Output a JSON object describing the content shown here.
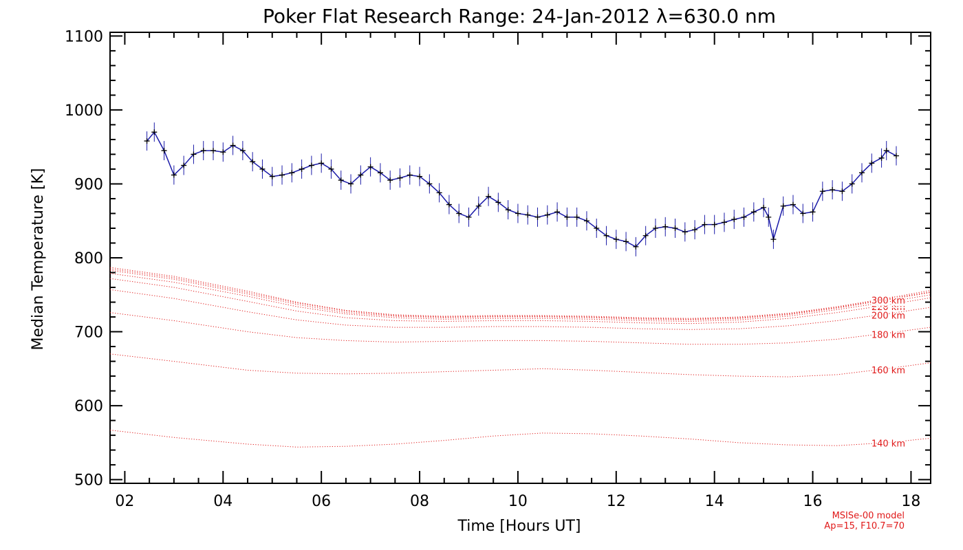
{
  "chart_data": {
    "type": "line",
    "title": "Poker Flat Research Range: 24-Jan-2012 λ=630.0 nm",
    "xlabel": "Time [Hours UT]",
    "ylabel": "Median Temperature [K]",
    "xlim": [
      1.7,
      18.4
    ],
    "ylim": [
      495,
      1105
    ],
    "x_ticks": [
      2,
      4,
      6,
      8,
      10,
      12,
      14,
      16,
      18
    ],
    "x_tick_labels": [
      "02",
      "04",
      "06",
      "08",
      "10",
      "12",
      "14",
      "16",
      "18"
    ],
    "y_ticks": [
      500,
      600,
      700,
      800,
      900,
      1000,
      1100
    ],
    "y_tick_labels": [
      "500",
      "600",
      "700",
      "800",
      "900",
      "1000",
      "1100"
    ],
    "grid": false,
    "colors": {
      "measured": "#1a1aa8",
      "markers": "#000000",
      "model": "#e01818"
    },
    "measured": {
      "x": [
        2.45,
        2.6,
        2.8,
        3.0,
        3.2,
        3.4,
        3.6,
        3.8,
        4.0,
        4.2,
        4.4,
        4.6,
        4.8,
        5.0,
        5.2,
        5.4,
        5.6,
        5.8,
        6.0,
        6.2,
        6.4,
        6.6,
        6.8,
        7.0,
        7.2,
        7.4,
        7.6,
        7.8,
        8.0,
        8.2,
        8.4,
        8.6,
        8.8,
        9.0,
        9.2,
        9.4,
        9.6,
        9.8,
        10.0,
        10.2,
        10.4,
        10.6,
        10.8,
        11.0,
        11.2,
        11.4,
        11.6,
        11.8,
        12.0,
        12.2,
        12.4,
        12.6,
        12.8,
        13.0,
        13.2,
        13.4,
        13.6,
        13.8,
        14.0,
        14.2,
        14.4,
        14.6,
        14.8,
        15.0,
        15.1,
        15.2,
        15.4,
        15.6,
        15.8,
        16.0,
        16.2,
        16.4,
        16.6,
        16.8,
        17.0,
        17.2,
        17.4,
        17.5,
        17.7
      ],
      "y": [
        958,
        970,
        945,
        912,
        925,
        940,
        945,
        945,
        943,
        952,
        945,
        930,
        920,
        910,
        912,
        915,
        920,
        925,
        928,
        920,
        905,
        900,
        912,
        923,
        915,
        905,
        908,
        912,
        910,
        900,
        888,
        872,
        860,
        855,
        870,
        883,
        875,
        865,
        860,
        858,
        855,
        858,
        862,
        855,
        855,
        850,
        840,
        830,
        825,
        822,
        815,
        830,
        840,
        842,
        840,
        835,
        838,
        845,
        845,
        848,
        852,
        855,
        862,
        868,
        855,
        825,
        870,
        872,
        860,
        862,
        890,
        892,
        890,
        900,
        915,
        928,
        935,
        945,
        938
      ]
    },
    "series": [
      {
        "name": "140 km",
        "x": [
          1.7,
          3.0,
          4.5,
          5.5,
          6.5,
          7.5,
          8.5,
          9.5,
          10.5,
          11.5,
          12.5,
          13.5,
          14.5,
          15.5,
          16.5,
          17.5,
          18.4
        ],
        "values": [
          567,
          557,
          548,
          544,
          545,
          548,
          553,
          559,
          563,
          562,
          559,
          555,
          550,
          547,
          546,
          550,
          556
        ]
      },
      {
        "name": "160 km",
        "x": [
          1.7,
          3.0,
          4.5,
          5.5,
          6.5,
          7.5,
          8.5,
          9.5,
          10.5,
          11.5,
          12.5,
          13.5,
          14.5,
          15.5,
          16.5,
          17.5,
          18.4
        ],
        "values": [
          670,
          660,
          648,
          644,
          643,
          644,
          646,
          648,
          650,
          648,
          645,
          642,
          640,
          639,
          642,
          650,
          658
        ]
      },
      {
        "name": "180 km",
        "x": [
          1.7,
          3.0,
          4.5,
          5.5,
          6.5,
          7.5,
          8.5,
          9.5,
          10.5,
          11.5,
          12.5,
          13.5,
          14.5,
          15.5,
          16.5,
          17.5,
          18.4
        ],
        "values": [
          726,
          715,
          700,
          692,
          688,
          686,
          687,
          688,
          688,
          687,
          685,
          683,
          683,
          685,
          690,
          698,
          706
        ]
      },
      {
        "name": "200 km",
        "x": [
          1.7,
          3.0,
          4.5,
          5.5,
          6.5,
          7.5,
          8.5,
          9.5,
          10.5,
          11.5,
          12.5,
          13.5,
          14.5,
          15.5,
          16.5,
          17.5,
          18.4
        ],
        "values": [
          757,
          745,
          727,
          716,
          709,
          706,
          706,
          707,
          707,
          706,
          704,
          703,
          704,
          708,
          715,
          724,
          733
        ]
      },
      {
        "name": "220 km",
        "x": [
          1.7,
          3.0,
          4.5,
          5.5,
          6.5,
          7.5,
          8.5,
          9.5,
          10.5,
          11.5,
          12.5,
          13.5,
          14.5,
          15.5,
          16.5,
          17.5,
          18.4
        ],
        "values": [
          772,
          760,
          741,
          728,
          719,
          715,
          714,
          715,
          715,
          714,
          712,
          711,
          713,
          718,
          726,
          736,
          746
        ]
      },
      {
        "name": "240 km",
        "x": [
          1.7,
          3.0,
          4.5,
          5.5,
          6.5,
          7.5,
          8.5,
          9.5,
          10.5,
          11.5,
          12.5,
          13.5,
          14.5,
          15.5,
          16.5,
          17.5,
          18.4
        ],
        "values": [
          779,
          767,
          748,
          734,
          724,
          719,
          717,
          718,
          718,
          717,
          715,
          714,
          716,
          721,
          730,
          740,
          750
        ]
      },
      {
        "name": "260 km",
        "x": [
          1.7,
          3.0,
          4.5,
          5.5,
          6.5,
          7.5,
          8.5,
          9.5,
          10.5,
          11.5,
          12.5,
          13.5,
          14.5,
          15.5,
          16.5,
          17.5,
          18.4
        ],
        "values": [
          783,
          771,
          751,
          737,
          726,
          721,
          719,
          720,
          720,
          719,
          717,
          716,
          718,
          723,
          732,
          743,
          753
        ]
      },
      {
        "name": "280 km",
        "x": [
          1.7,
          3.0,
          4.5,
          5.5,
          6.5,
          7.5,
          8.5,
          9.5,
          10.5,
          11.5,
          12.5,
          13.5,
          14.5,
          15.5,
          16.5,
          17.5,
          18.4
        ],
        "values": [
          785,
          773,
          753,
          739,
          728,
          722,
          720,
          721,
          721,
          720,
          718,
          717,
          719,
          724,
          733,
          744,
          754
        ]
      },
      {
        "name": "300 km",
        "x": [
          1.7,
          3.0,
          4.5,
          5.5,
          6.5,
          7.5,
          8.5,
          9.5,
          10.5,
          11.5,
          12.5,
          13.5,
          14.5,
          15.5,
          16.5,
          17.5,
          18.4
        ],
        "values": [
          787,
          775,
          755,
          740,
          729,
          723,
          721,
          722,
          722,
          721,
          719,
          718,
          720,
          725,
          734,
          745,
          756
        ]
      }
    ],
    "legend": "labels at right end of model curves",
    "annotation": {
      "line1": "MSISe-00 model",
      "line2": "Ap=15, F10.7=70"
    }
  }
}
